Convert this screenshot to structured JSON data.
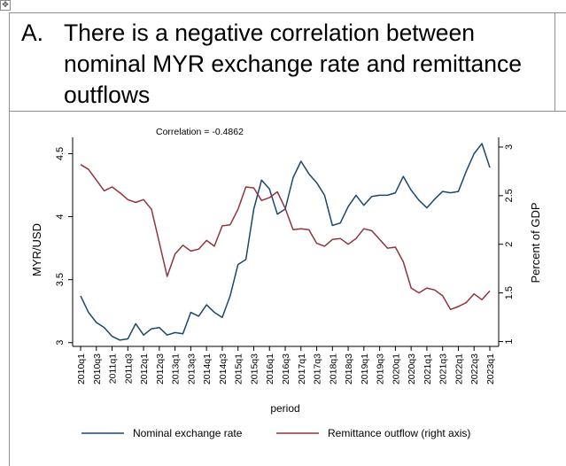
{
  "heading": {
    "letter": "A.",
    "text": "There is a negative correlation between nominal MYR exchange rate and remittance outflows"
  },
  "move_handle_icon": "move-arrows-icon",
  "chart_data": {
    "type": "line",
    "annotation": "Correlation = -0.4862",
    "xlabel": "period",
    "ylabel_left": "MYR/USD",
    "ylabel_right": "Percent of GDP",
    "ylim_left": [
      2.97,
      4.63
    ],
    "ylim_right": [
      0.95,
      3.1
    ],
    "yticks_left": [
      "3",
      "3.5",
      "4",
      "4.5"
    ],
    "yticks_left_values": [
      3,
      3.5,
      4,
      4.5
    ],
    "yticks_right": [
      "1",
      "1.5",
      "2",
      "2.5",
      "3"
    ],
    "yticks_right_values": [
      1,
      1.5,
      2,
      2.5,
      3
    ],
    "x": [
      "2010q1",
      "2010q2",
      "2010q3",
      "2010q4",
      "2011q1",
      "2011q2",
      "2011q3",
      "2011q4",
      "2012q1",
      "2012q2",
      "2012q3",
      "2012q4",
      "2013q1",
      "2013q2",
      "2013q3",
      "2013q4",
      "2014q1",
      "2014q2",
      "2014q3",
      "2014q4",
      "2015q1",
      "2015q2",
      "2015q3",
      "2015q4",
      "2016q1",
      "2016q2",
      "2016q3",
      "2016q4",
      "2017q1",
      "2017q2",
      "2017q3",
      "2017q4",
      "2018q1",
      "2018q2",
      "2018q3",
      "2018q4",
      "2019q1",
      "2019q2",
      "2019q3",
      "2019q4",
      "2020q1",
      "2020q2",
      "2020q3",
      "2020q4",
      "2021q1",
      "2021q2",
      "2021q3",
      "2021q4",
      "2022q1",
      "2022q2",
      "2022q3",
      "2022q4",
      "2023q1"
    ],
    "xtick_labels": [
      "2010q1",
      "2010q3",
      "2011q1",
      "2011q3",
      "2012q1",
      "2012q3",
      "2013q1",
      "2013q3",
      "2014q1",
      "2014q3",
      "2015q1",
      "2015q3",
      "2016q1",
      "2016q3",
      "2017q1",
      "2017q3",
      "2018q1",
      "2018q3",
      "2019q1",
      "2019q3",
      "2020q1",
      "2020q3",
      "2021q1",
      "2021q3",
      "2022q1",
      "2022q3",
      "2023q1"
    ],
    "series": [
      {
        "name": "Nominal exchange rate",
        "axis": "left",
        "color": "#1a476f",
        "values": [
          3.37,
          3.24,
          3.16,
          3.12,
          3.05,
          3.02,
          3.03,
          3.15,
          3.06,
          3.11,
          3.12,
          3.06,
          3.08,
          3.07,
          3.24,
          3.21,
          3.3,
          3.24,
          3.2,
          3.37,
          3.62,
          3.66,
          4.06,
          4.29,
          4.22,
          4.02,
          4.06,
          4.31,
          4.44,
          4.34,
          4.27,
          4.17,
          3.93,
          3.95,
          4.08,
          4.17,
          4.09,
          4.16,
          4.17,
          4.17,
          4.19,
          4.32,
          4.21,
          4.13,
          4.07,
          4.14,
          4.2,
          4.19,
          4.2,
          4.36,
          4.5,
          4.58,
          4.39
        ]
      },
      {
        "name": "Remittance outflow (right axis)",
        "axis": "right",
        "color": "#90353b",
        "values": [
          2.82,
          2.77,
          2.66,
          2.55,
          2.59,
          2.53,
          2.46,
          2.43,
          2.46,
          2.36,
          2.02,
          1.67,
          1.9,
          1.99,
          1.93,
          1.95,
          2.04,
          1.98,
          2.19,
          2.2,
          2.36,
          2.59,
          2.58,
          2.45,
          2.48,
          2.54,
          2.37,
          2.15,
          2.16,
          2.15,
          2.01,
          1.98,
          2.05,
          2.06,
          2.0,
          2.06,
          2.16,
          2.14,
          2.05,
          1.96,
          1.97,
          1.82,
          1.55,
          1.5,
          1.55,
          1.53,
          1.47,
          1.33,
          1.36,
          1.4,
          1.49,
          1.43,
          1.52
        ]
      }
    ],
    "legend_position": "bottom",
    "grid": false
  }
}
